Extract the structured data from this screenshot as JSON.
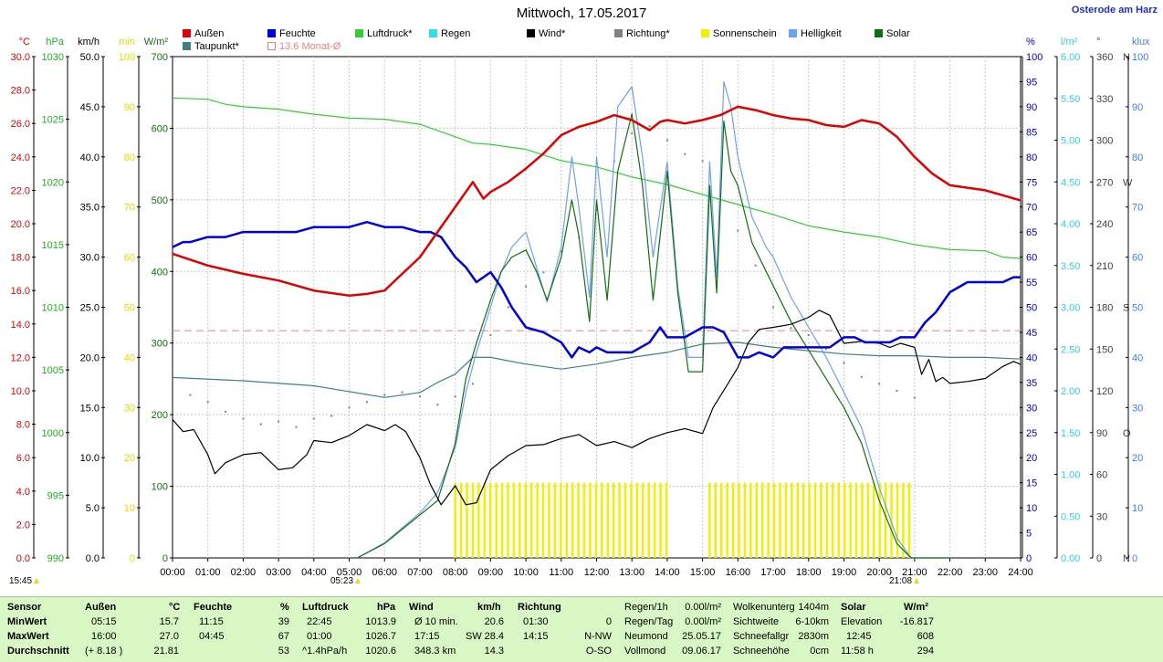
{
  "header": {
    "title": "Mittwoch, 17.05.2017",
    "location": "Osterode am Harz"
  },
  "legend": [
    {
      "label": "Außen",
      "color": "#e00000"
    },
    {
      "label": "Feuchte",
      "color": "#0000e0"
    },
    {
      "label": "Luftdruck*",
      "color": "#30d030"
    },
    {
      "label": "Regen",
      "color": "#30e0e0"
    },
    {
      "label": "Wind*",
      "color": "#000000"
    },
    {
      "label": "Richtung*",
      "color": "#808080"
    },
    {
      "label": "Sonnenschein",
      "color": "#f0f000"
    },
    {
      "label": "Helligkeit",
      "color": "#70a0f0"
    },
    {
      "label": "Solar",
      "color": "#107010"
    },
    {
      "label": "Taupunkt*",
      "color": "#408080"
    },
    {
      "label": "13.6 Monat-Ø",
      "color": "#f08080"
    }
  ],
  "axes": {
    "temp": {
      "unit": "°C",
      "color": "#e00000",
      "ticks": [
        "30.0",
        "28.0",
        "26.0",
        "24.0",
        "22.0",
        "20.0",
        "18.0",
        "16.0",
        "14.0",
        "12.0",
        "10.0",
        "8.0",
        "6.0",
        "4.0",
        "2.0",
        "0.0"
      ]
    },
    "press": {
      "unit": "hPa",
      "color": "#20b020",
      "ticks": [
        "1030",
        "1025",
        "1020",
        "1015",
        "1010",
        "1005",
        "1000",
        "995",
        "990"
      ]
    },
    "wind": {
      "unit": "km/h",
      "color": "#000000",
      "ticks": [
        "50.0",
        "45.0",
        "40.0",
        "35.0",
        "30.0",
        "25.0",
        "20.0",
        "15.0",
        "10.0",
        "5.0",
        "0.0"
      ]
    },
    "sun": {
      "unit": "min",
      "color": "#e0e000",
      "ticks": [
        "100",
        "90",
        "80",
        "70",
        "60",
        "50",
        "40",
        "30",
        "20",
        "10",
        "0"
      ]
    },
    "solar": {
      "unit": "W/m²",
      "color": "#107010",
      "ticks": [
        "700",
        "600",
        "500",
        "400",
        "300",
        "200",
        "100",
        "0"
      ]
    },
    "hum": {
      "unit": "%",
      "color": "#0000c0",
      "ticks": [
        "100",
        "95",
        "90",
        "85",
        "80",
        "75",
        "70",
        "65",
        "60",
        "55",
        "50",
        "45",
        "40",
        "35",
        "30",
        "25",
        "20",
        "15",
        "10",
        "5",
        "0"
      ]
    },
    "rain": {
      "unit": "l/m²",
      "color": "#30d0e0",
      "ticks": [
        "6.00",
        "5.50",
        "5.00",
        "4.50",
        "4.00",
        "3.50",
        "3.00",
        "2.50",
        "2.00",
        "1.50",
        "1.00",
        "0.50",
        "0.00"
      ]
    },
    "dir": {
      "unit": "°",
      "color": "#404040",
      "ticks": [
        "360",
        "330",
        "300",
        "270",
        "240",
        "210",
        "180",
        "150",
        "120",
        "90",
        "60",
        "30",
        "0"
      ],
      "letters": [
        "N",
        "",
        "",
        "W",
        "",
        "",
        "S",
        "",
        "",
        "O",
        "",
        "",
        "N"
      ]
    },
    "lux": {
      "unit": "klux",
      "color": "#4080e0",
      "ticks": [
        "100",
        "90",
        "80",
        "70",
        "60",
        "50",
        "40",
        "30",
        "20",
        "10",
        "0"
      ]
    }
  },
  "chart_data": {
    "type": "line",
    "title": "Mittwoch, 17.05.2017",
    "x_ticks": [
      "00:00",
      "01:00",
      "02:00",
      "03:00",
      "04:00",
      "05:00",
      "06:00",
      "07:00",
      "08:00",
      "09:00",
      "10:00",
      "11:00",
      "12:00",
      "13:00",
      "14:00",
      "15:00",
      "16:00",
      "17:00",
      "18:00",
      "19:00",
      "20:00",
      "21:00",
      "22:00",
      "23:00",
      "24:00"
    ],
    "sunrise": "05:23",
    "sunset": "21:08",
    "grid": true,
    "month_avg_temp": 13.6,
    "sunshine_blocks": [
      [
        8.0,
        14.0
      ],
      [
        15.2,
        20.9
      ]
    ],
    "series": [
      {
        "name": "Außen",
        "color": "#e00000",
        "axis": "temp",
        "x": [
          0,
          1,
          2,
          3,
          4,
          5,
          5.5,
          6,
          6.5,
          7,
          7.5,
          8,
          8.5,
          8.8,
          9,
          9.5,
          10,
          10.5,
          11,
          11.5,
          12,
          12.5,
          13,
          13.5,
          13.8,
          14,
          14.5,
          15,
          15.5,
          16,
          16.5,
          17,
          17.5,
          18,
          18.5,
          19,
          19.5,
          20,
          20.5,
          21,
          21.5,
          22,
          23,
          24
        ],
        "y": [
          18.2,
          17.5,
          17.0,
          16.6,
          16.0,
          15.7,
          15.8,
          16.0,
          17.0,
          18.0,
          19.5,
          21.0,
          22.5,
          21.5,
          21.9,
          22.5,
          23.3,
          24.2,
          25.3,
          25.8,
          26.1,
          26.5,
          26.2,
          25.6,
          26.1,
          26.2,
          26.0,
          26.2,
          26.5,
          27.0,
          26.8,
          26.5,
          26.3,
          26.2,
          25.9,
          25.8,
          26.2,
          26.0,
          25.2,
          24.0,
          23.0,
          22.3,
          22.0,
          21.4
        ]
      },
      {
        "name": "Taupunkt*",
        "color": "#408080",
        "axis": "temp",
        "x": [
          0,
          2,
          4,
          6,
          7,
          7.5,
          8,
          8.5,
          9,
          9.5,
          10,
          11,
          12,
          13,
          14,
          15,
          16,
          17,
          18,
          19,
          20,
          21,
          22,
          23,
          24
        ],
        "y": [
          10.8,
          10.6,
          10.3,
          9.6,
          9.9,
          10.5,
          11.0,
          12.0,
          12.0,
          11.8,
          11.6,
          11.3,
          11.6,
          12.0,
          12.3,
          12.8,
          12.9,
          12.6,
          12.4,
          12.2,
          12.1,
          12.1,
          12.0,
          12.0,
          11.9
        ]
      },
      {
        "name": "Feuchte",
        "color": "#0000e0",
        "axis": "hum",
        "x": [
          0,
          0.3,
          0.5,
          1,
          1.5,
          2,
          2.5,
          3,
          3.5,
          4,
          4.5,
          5,
          5.5,
          6,
          6.5,
          7,
          7.3,
          7.6,
          8,
          8.3,
          8.6,
          9,
          9.3,
          9.6,
          10,
          10.5,
          11,
          11.3,
          11.5,
          11.8,
          12,
          12.3,
          12.5,
          13,
          13.5,
          13.8,
          14,
          14.3,
          14.5,
          15,
          15.3,
          15.6,
          16,
          16.3,
          16.6,
          17,
          17.3,
          17.6,
          18,
          18.3,
          18.6,
          19,
          19.3,
          19.6,
          20,
          20.3,
          20.6,
          21,
          21.3,
          21.6,
          22,
          22.5,
          23,
          23.5,
          23.8,
          24
        ],
        "y": [
          62,
          63,
          63,
          64,
          64,
          65,
          65,
          65,
          65,
          66,
          66,
          66,
          67,
          66,
          66,
          65,
          65,
          64,
          60,
          58,
          55,
          57,
          54,
          50,
          46,
          45,
          43,
          40,
          42,
          41,
          42,
          41,
          41,
          41,
          43,
          46,
          44,
          44,
          44,
          46,
          46,
          45,
          40,
          40,
          41,
          40,
          42,
          42,
          42,
          42,
          42,
          44,
          44,
          43,
          43,
          43,
          44,
          44,
          47,
          49,
          53,
          55,
          55,
          55,
          56,
          56
        ]
      },
      {
        "name": "Luftdruck*",
        "color": "#30d030",
        "axis": "press",
        "x": [
          0,
          1,
          1.5,
          2,
          3,
          4,
          5,
          6,
          7,
          8,
          8.5,
          9,
          10,
          11,
          12,
          13,
          14,
          15,
          16,
          17,
          18,
          19,
          20,
          21,
          22,
          23,
          23.5,
          24
        ],
        "y": [
          1026.7,
          1026.6,
          1026.2,
          1026.0,
          1025.8,
          1025.4,
          1025.1,
          1025.0,
          1024.6,
          1023.6,
          1023.1,
          1023.0,
          1022.6,
          1021.7,
          1021.2,
          1020.4,
          1019.8,
          1019.0,
          1018.2,
          1017.4,
          1016.5,
          1016.0,
          1015.6,
          1015.0,
          1014.6,
          1014.5,
          1014.0,
          1013.9
        ]
      },
      {
        "name": "Wind*",
        "color": "#000000",
        "axis": "wind",
        "x": [
          0,
          0.3,
          0.6,
          1,
          1.2,
          1.5,
          2,
          2.5,
          3,
          3.4,
          3.8,
          4,
          4.5,
          5,
          5.5,
          6,
          6.3,
          6.6,
          7,
          7.3,
          7.6,
          8,
          8.3,
          8.6,
          9,
          9.5,
          10,
          10.5,
          11,
          11.5,
          12,
          12.5,
          13,
          13.5,
          14,
          14.5,
          15,
          15.3,
          15.6,
          16,
          16.3,
          16.6,
          17,
          17.5,
          18,
          18.3,
          18.6,
          19,
          19.5,
          20,
          20.3,
          20.6,
          21,
          21.2,
          21.4,
          21.6,
          21.8,
          22,
          22.5,
          23,
          23.5,
          23.8,
          24
        ],
        "y": [
          13.8,
          12.6,
          12.8,
          10.3,
          8.4,
          9.5,
          10.3,
          10.5,
          8.8,
          9.0,
          10.3,
          11.7,
          11.5,
          12.2,
          13.3,
          12.7,
          13.3,
          12.6,
          10.0,
          7.3,
          5.3,
          7.2,
          5.3,
          5.5,
          8.8,
          10.2,
          11.2,
          11.3,
          11.9,
          12.3,
          11.2,
          11.6,
          11.0,
          11.9,
          12.5,
          12.9,
          12.4,
          15.0,
          16.7,
          19.0,
          21.5,
          22.8,
          23.0,
          23.3,
          24.0,
          24.7,
          24.2,
          21.4,
          21.6,
          21.4,
          21.0,
          21.4,
          21.0,
          18.3,
          19.8,
          17.6,
          18.0,
          17.4,
          17.6,
          17.9,
          19.1,
          19.6,
          19.3
        ]
      },
      {
        "name": "Solar",
        "color": "#107010",
        "axis": "solar",
        "x": [
          5.23,
          6,
          6.5,
          7,
          7.5,
          8,
          8.3,
          8.6,
          9,
          9.3,
          9.6,
          10,
          10.3,
          10.6,
          11,
          11.3,
          11.5,
          11.8,
          12,
          12.3,
          12.6,
          13,
          13.3,
          13.6,
          14,
          14.3,
          14.6,
          15,
          15.2,
          15.4,
          15.6,
          15.8,
          16,
          16.4,
          16.8,
          17,
          17.5,
          18,
          18.5,
          19,
          19.5,
          20,
          20.5,
          20.9,
          21.1,
          21.5,
          22
        ],
        "y": [
          0,
          20,
          40,
          60,
          80,
          160,
          250,
          300,
          360,
          400,
          420,
          430,
          400,
          360,
          420,
          500,
          450,
          330,
          500,
          360,
          540,
          620,
          520,
          360,
          540,
          370,
          260,
          260,
          520,
          370,
          610,
          540,
          520,
          440,
          400,
          380,
          330,
          290,
          250,
          210,
          160,
          80,
          20,
          0,
          0,
          0,
          0
        ]
      },
      {
        "name": "Helligkeit",
        "color": "#70a0f0",
        "axis": "lux",
        "x": [
          5.23,
          6,
          6.5,
          7,
          7.5,
          8,
          8.3,
          8.6,
          9,
          9.3,
          9.6,
          10,
          10.3,
          10.6,
          11,
          11.3,
          11.5,
          11.8,
          12,
          12.3,
          12.6,
          13,
          13.3,
          13.6,
          14,
          14.3,
          14.6,
          15,
          15.2,
          15.4,
          15.6,
          15.8,
          16,
          16.4,
          16.8,
          17,
          17.5,
          18,
          18.5,
          19,
          19.5,
          20,
          20.5,
          20.9,
          21.1,
          21.5,
          22
        ],
        "y": [
          0,
          3,
          6,
          9,
          13,
          22,
          33,
          41,
          50,
          57,
          62,
          65,
          58,
          51,
          62,
          80,
          70,
          52,
          80,
          60,
          90,
          94,
          80,
          60,
          79,
          54,
          40,
          40,
          79,
          56,
          95,
          90,
          80,
          68,
          62,
          60,
          52,
          46,
          40,
          33,
          26,
          14,
          4,
          0,
          0,
          0,
          0
        ]
      },
      {
        "name": "Richtung*",
        "color": "#808080",
        "axis": "dir",
        "x": [
          0.5,
          1,
          1.5,
          2,
          2.5,
          3,
          3.5,
          4,
          4.5,
          5,
          5.5,
          6,
          6.5,
          7,
          7.5,
          8,
          8.5,
          9,
          9.5,
          10,
          10.5,
          11,
          11.5,
          12,
          12.5,
          13,
          13.5,
          14,
          14.5,
          15,
          15.5,
          16,
          16.5,
          17,
          17.5,
          18,
          18.5,
          19,
          19.5,
          20,
          20.5,
          21
        ],
        "y": [
          117,
          112,
          105,
          100,
          96,
          98,
          94,
          100,
          102,
          108,
          112,
          117,
          119,
          116,
          110,
          116,
          125,
          160,
          180,
          195,
          205,
          220,
          230,
          250,
          285,
          305,
          310,
          300,
          290,
          285,
          260,
          235,
          210,
          180,
          165,
          160,
          150,
          140,
          130,
          125,
          120,
          115
        ]
      }
    ]
  },
  "footer": {
    "sensor": {
      "label": "Sensor",
      "min": "MinWert",
      "max": "MaxWert",
      "avg": "Durchschnitt"
    },
    "aussen": {
      "label": "Außen",
      "unit": "°C",
      "min_time": "05:15",
      "min": "15.7",
      "max_time": "16:00",
      "max": "27.0",
      "avg_note": "(+ 8.18 )",
      "avg": "21.81"
    },
    "feuchte": {
      "label": "Feuchte",
      "unit": "%",
      "min_time": "11:15",
      "min": "39",
      "max_time": "04:45",
      "max": "67",
      "avg": "53"
    },
    "luftdruck": {
      "label": "Luftdruck",
      "unit": "hPa",
      "min_time": "22:45",
      "min": "1013.9",
      "max_time": "01:00",
      "max": "1026.7",
      "avg_note": "^1.4hPa/h",
      "avg": "1020.6"
    },
    "wind": {
      "label": "Wind",
      "unit": "km/h",
      "min_label": "Ø 10 min.",
      "min": "20.6",
      "max_time": "17:15",
      "max_dir": "SW",
      "max": "28.4",
      "avg_note": "348.3 km",
      "avg": "14.3"
    },
    "richtung": {
      "label": "Richtung",
      "min_time": "01:30",
      "min": "0",
      "max_time": "14:15",
      "max": "N-NW",
      "avg": "O-SO"
    },
    "regen": {
      "r1_label": "Regen/1h",
      "r1": "0.00l/m²",
      "r2_label": "Regen/Tag",
      "r2": "0.00l/m²",
      "r3_label": "Neumond",
      "r3": "25.05.17",
      "r4_label": "Vollmond",
      "r4": "09.06.17"
    },
    "wolken": {
      "r1_label": "Wolkenunterg",
      "r1": "1404m",
      "r2_label": "Sichtweite",
      "r2": "6-10km",
      "r3_label": "Schneefallgr",
      "r3": "2830m",
      "r4_label": "Schneehöhe",
      "r4": "0cm"
    },
    "solar": {
      "label": "Solar",
      "unit": "W/m²",
      "r1_label": "Elevation",
      "r1": "-16.817",
      "r2_label": "12:45",
      "r2": "608",
      "r3_label": "11:58 h",
      "r3": "294"
    },
    "time": "15:45"
  }
}
